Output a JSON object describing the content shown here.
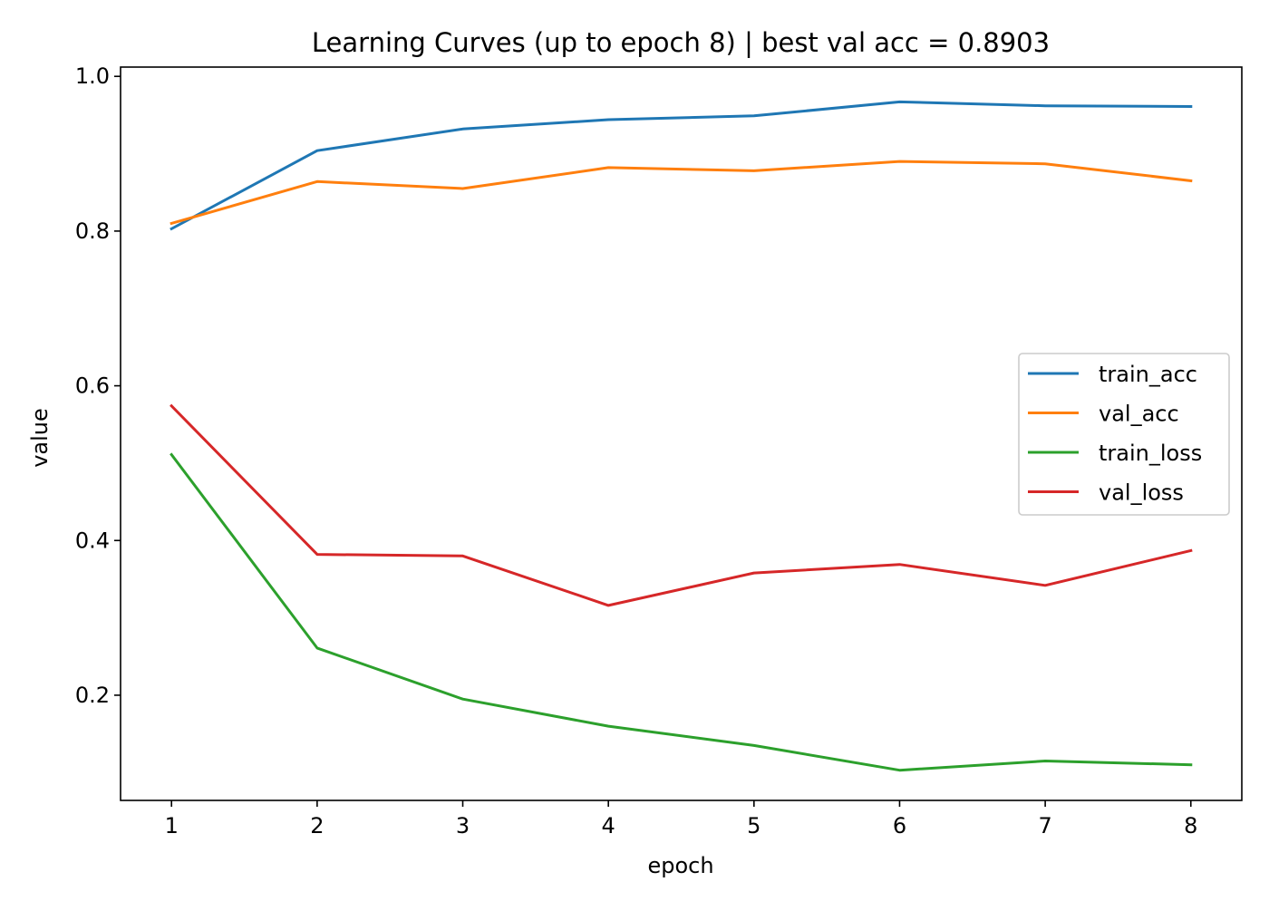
{
  "chart_data": {
    "type": "line",
    "title": "Learning Curves (up to epoch 8)  |  best val acc = 0.8903",
    "xlabel": "epoch",
    "ylabel": "value",
    "x": [
      1,
      2,
      3,
      4,
      5,
      6,
      7,
      8
    ],
    "xlim": [
      0.65,
      8.35
    ],
    "ylim": [
      0.064,
      1.012
    ],
    "xticks": [
      1,
      2,
      3,
      4,
      5,
      6,
      7,
      8
    ],
    "xtick_labels": [
      "1",
      "2",
      "3",
      "4",
      "5",
      "6",
      "7",
      "8"
    ],
    "yticks": [
      0.2,
      0.4,
      0.6,
      0.8,
      1.0
    ],
    "ytick_labels": [
      "0.2",
      "0.4",
      "0.6",
      "0.8",
      "1.0"
    ],
    "grid": false,
    "legend_position": "center-right",
    "series": [
      {
        "name": "train_acc",
        "color": "#1f77b4",
        "values": [
          0.803,
          0.904,
          0.932,
          0.944,
          0.949,
          0.967,
          0.962,
          0.961
        ]
      },
      {
        "name": "val_acc",
        "color": "#ff7f0e",
        "values": [
          0.81,
          0.864,
          0.855,
          0.882,
          0.878,
          0.89,
          0.887,
          0.865
        ]
      },
      {
        "name": "train_loss",
        "color": "#2ca02c",
        "values": [
          0.511,
          0.261,
          0.195,
          0.16,
          0.135,
          0.103,
          0.115,
          0.11
        ]
      },
      {
        "name": "val_loss",
        "color": "#d62728",
        "values": [
          0.574,
          0.382,
          0.38,
          0.316,
          0.358,
          0.369,
          0.342,
          0.387
        ]
      }
    ]
  }
}
